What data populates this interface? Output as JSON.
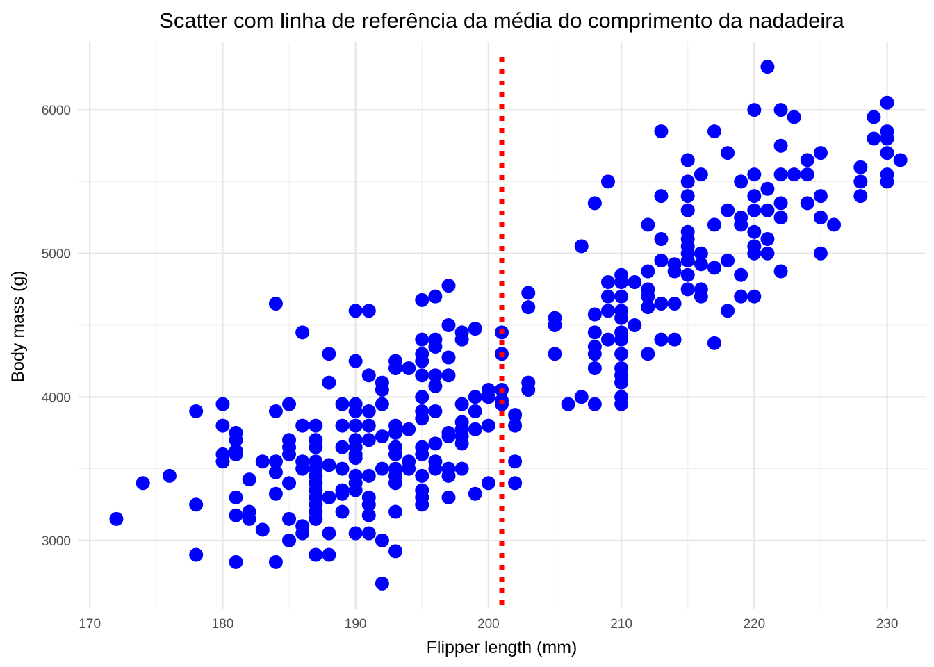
{
  "chart_data": {
    "type": "scatter",
    "title": "Scatter com linha de referência da média do comprimento da nadadeira",
    "xlabel": "Flipper length (mm)",
    "ylabel": "Body mass (g)",
    "xlim": [
      169.1,
      232.9
    ],
    "ylim": [
      2525,
      6475
    ],
    "x_ticks": [
      170,
      180,
      190,
      200,
      210,
      220,
      230
    ],
    "y_ticks": [
      3000,
      4000,
      5000,
      6000
    ],
    "grid": true,
    "legend": "none",
    "point_color": "#0000ff",
    "reference_line": {
      "orientation": "vertical",
      "x": 201,
      "style": "dotted",
      "color": "#ff0000"
    },
    "points": [
      [
        172,
        3150
      ],
      [
        174,
        3400
      ],
      [
        176,
        3450
      ],
      [
        178,
        3900
      ],
      [
        178,
        3250
      ],
      [
        178,
        2900
      ],
      [
        180,
        3950
      ],
      [
        180,
        3800
      ],
      [
        180,
        3600
      ],
      [
        180,
        3550
      ],
      [
        181,
        3750
      ],
      [
        181,
        3700
      ],
      [
        181,
        3625
      ],
      [
        181,
        3600
      ],
      [
        181,
        3300
      ],
      [
        181,
        3175
      ],
      [
        181,
        2850
      ],
      [
        182,
        3425
      ],
      [
        182,
        3200
      ],
      [
        182,
        3150
      ],
      [
        183,
        3550
      ],
      [
        183,
        3075
      ],
      [
        184,
        4650
      ],
      [
        184,
        3900
      ],
      [
        184,
        3550
      ],
      [
        184,
        3475
      ],
      [
        184,
        3325
      ],
      [
        184,
        2850
      ],
      [
        185,
        3950
      ],
      [
        185,
        3700
      ],
      [
        185,
        3650
      ],
      [
        185,
        3600
      ],
      [
        185,
        3400
      ],
      [
        185,
        3150
      ],
      [
        185,
        3000
      ],
      [
        186,
        4450
      ],
      [
        186,
        3800
      ],
      [
        186,
        3550
      ],
      [
        186,
        3500
      ],
      [
        186,
        3100
      ],
      [
        186,
        3050
      ],
      [
        187,
        3800
      ],
      [
        187,
        3700
      ],
      [
        187,
        3650
      ],
      [
        187,
        3550
      ],
      [
        187,
        3500
      ],
      [
        187,
        3450
      ],
      [
        187,
        3400
      ],
      [
        187,
        3350
      ],
      [
        187,
        3300
      ],
      [
        187,
        3250
      ],
      [
        187,
        3200
      ],
      [
        187,
        3150
      ],
      [
        187,
        2900
      ],
      [
        188,
        4300
      ],
      [
        188,
        4100
      ],
      [
        188,
        3525
      ],
      [
        188,
        3300
      ],
      [
        188,
        3050
      ],
      [
        188,
        2900
      ],
      [
        189,
        3950
      ],
      [
        189,
        3800
      ],
      [
        189,
        3650
      ],
      [
        189,
        3500
      ],
      [
        189,
        3350
      ],
      [
        189,
        3325
      ],
      [
        189,
        3200
      ],
      [
        190,
        4600
      ],
      [
        190,
        4250
      ],
      [
        190,
        3950
      ],
      [
        190,
        3900
      ],
      [
        190,
        3800
      ],
      [
        190,
        3700
      ],
      [
        190,
        3650
      ],
      [
        190,
        3600
      ],
      [
        190,
        3575
      ],
      [
        190,
        3450
      ],
      [
        190,
        3400
      ],
      [
        190,
        3350
      ],
      [
        190,
        3050
      ],
      [
        191,
        4600
      ],
      [
        191,
        4150
      ],
      [
        191,
        3900
      ],
      [
        191,
        3800
      ],
      [
        191,
        3700
      ],
      [
        191,
        3450
      ],
      [
        191,
        3300
      ],
      [
        191,
        3250
      ],
      [
        191,
        3175
      ],
      [
        191,
        3050
      ],
      [
        192,
        4100
      ],
      [
        192,
        4050
      ],
      [
        192,
        3950
      ],
      [
        192,
        3725
      ],
      [
        192,
        3500
      ],
      [
        192,
        3000
      ],
      [
        192,
        2700
      ],
      [
        193,
        4250
      ],
      [
        193,
        4200
      ],
      [
        193,
        3800
      ],
      [
        193,
        3750
      ],
      [
        193,
        3650
      ],
      [
        193,
        3600
      ],
      [
        193,
        3500
      ],
      [
        193,
        3450
      ],
      [
        193,
        3400
      ],
      [
        193,
        3200
      ],
      [
        193,
        2925
      ],
      [
        194,
        4200
      ],
      [
        194,
        3775
      ],
      [
        194,
        3550
      ],
      [
        194,
        3500
      ],
      [
        195,
        4675
      ],
      [
        195,
        4400
      ],
      [
        195,
        4300
      ],
      [
        195,
        4250
      ],
      [
        195,
        4150
      ],
      [
        195,
        4000
      ],
      [
        195,
        3900
      ],
      [
        195,
        3850
      ],
      [
        195,
        3650
      ],
      [
        195,
        3600
      ],
      [
        195,
        3450
      ],
      [
        195,
        3350
      ],
      [
        195,
        3300
      ],
      [
        195,
        3250
      ],
      [
        196,
        4700
      ],
      [
        196,
        4400
      ],
      [
        196,
        4350
      ],
      [
        196,
        4150
      ],
      [
        196,
        4075
      ],
      [
        196,
        3900
      ],
      [
        196,
        3675
      ],
      [
        196,
        3550
      ],
      [
        196,
        3500
      ],
      [
        197,
        4775
      ],
      [
        197,
        4500
      ],
      [
        197,
        4275
      ],
      [
        197,
        4150
      ],
      [
        197,
        3750
      ],
      [
        197,
        3725
      ],
      [
        197,
        3500
      ],
      [
        197,
        3450
      ],
      [
        197,
        3300
      ],
      [
        198,
        4450
      ],
      [
        198,
        4400
      ],
      [
        198,
        3950
      ],
      [
        198,
        3825
      ],
      [
        198,
        3775
      ],
      [
        198,
        3725
      ],
      [
        198,
        3675
      ],
      [
        198,
        3500
      ],
      [
        199,
        4475
      ],
      [
        199,
        4000
      ],
      [
        199,
        3900
      ],
      [
        199,
        3775
      ],
      [
        199,
        3325
      ],
      [
        200,
        4050
      ],
      [
        200,
        4000
      ],
      [
        200,
        3800
      ],
      [
        200,
        3400
      ],
      [
        201,
        4450
      ],
      [
        201,
        4300
      ],
      [
        201,
        4050
      ],
      [
        201,
        3975
      ],
      [
        201,
        3950
      ],
      [
        202,
        3875
      ],
      [
        202,
        3800
      ],
      [
        202,
        3550
      ],
      [
        202,
        3400
      ],
      [
        203,
        4725
      ],
      [
        203,
        4625
      ],
      [
        203,
        4100
      ],
      [
        203,
        4050
      ],
      [
        205,
        4550
      ],
      [
        205,
        4500
      ],
      [
        205,
        4300
      ],
      [
        206,
        3950
      ],
      [
        207,
        5050
      ],
      [
        207,
        4000
      ],
      [
        208,
        5350
      ],
      [
        208,
        4575
      ],
      [
        208,
        4450
      ],
      [
        208,
        4350
      ],
      [
        208,
        4300
      ],
      [
        208,
        4200
      ],
      [
        208,
        3950
      ],
      [
        209,
        5500
      ],
      [
        209,
        4800
      ],
      [
        209,
        4700
      ],
      [
        209,
        4600
      ],
      [
        209,
        4400
      ],
      [
        210,
        4850
      ],
      [
        210,
        4800
      ],
      [
        210,
        4700
      ],
      [
        210,
        4600
      ],
      [
        210,
        4550
      ],
      [
        210,
        4450
      ],
      [
        210,
        4400
      ],
      [
        210,
        4300
      ],
      [
        210,
        4200
      ],
      [
        210,
        4150
      ],
      [
        210,
        4100
      ],
      [
        210,
        4000
      ],
      [
        210,
        3950
      ],
      [
        211,
        4800
      ],
      [
        211,
        4500
      ],
      [
        212,
        5200
      ],
      [
        212,
        4875
      ],
      [
        212,
        4750
      ],
      [
        212,
        4700
      ],
      [
        212,
        4625
      ],
      [
        212,
        4300
      ],
      [
        213,
        5850
      ],
      [
        213,
        5400
      ],
      [
        213,
        5100
      ],
      [
        213,
        4950
      ],
      [
        213,
        4650
      ],
      [
        213,
        4400
      ],
      [
        214,
        4925
      ],
      [
        214,
        4875
      ],
      [
        214,
        4650
      ],
      [
        214,
        4400
      ],
      [
        215,
        5650
      ],
      [
        215,
        5500
      ],
      [
        215,
        5400
      ],
      [
        215,
        5300
      ],
      [
        215,
        5150
      ],
      [
        215,
        5100
      ],
      [
        215,
        5050
      ],
      [
        215,
        5000
      ],
      [
        215,
        4950
      ],
      [
        215,
        4850
      ],
      [
        215,
        4750
      ],
      [
        216,
        5550
      ],
      [
        216,
        5000
      ],
      [
        216,
        4925
      ],
      [
        216,
        4750
      ],
      [
        216,
        4700
      ],
      [
        217,
        5850
      ],
      [
        217,
        5200
      ],
      [
        217,
        4900
      ],
      [
        217,
        4375
      ],
      [
        218,
        5700
      ],
      [
        218,
        5300
      ],
      [
        218,
        4950
      ],
      [
        218,
        4600
      ],
      [
        219,
        5500
      ],
      [
        219,
        5250
      ],
      [
        219,
        5200
      ],
      [
        219,
        4850
      ],
      [
        219,
        4700
      ],
      [
        220,
        6000
      ],
      [
        220,
        5550
      ],
      [
        220,
        5400
      ],
      [
        220,
        5300
      ],
      [
        220,
        5150
      ],
      [
        220,
        5050
      ],
      [
        220,
        5000
      ],
      [
        220,
        4700
      ],
      [
        221,
        6300
      ],
      [
        221,
        5450
      ],
      [
        221,
        5300
      ],
      [
        221,
        5100
      ],
      [
        221,
        5000
      ],
      [
        222,
        6000
      ],
      [
        222,
        5750
      ],
      [
        222,
        5550
      ],
      [
        222,
        5350
      ],
      [
        222,
        5250
      ],
      [
        222,
        4875
      ],
      [
        223,
        5950
      ],
      [
        223,
        5550
      ],
      [
        224,
        5650
      ],
      [
        224,
        5550
      ],
      [
        224,
        5350
      ],
      [
        225,
        5700
      ],
      [
        225,
        5400
      ],
      [
        225,
        5250
      ],
      [
        225,
        5000
      ],
      [
        226,
        5200
      ],
      [
        228,
        5600
      ],
      [
        228,
        5500
      ],
      [
        228,
        5400
      ],
      [
        229,
        5950
      ],
      [
        229,
        5800
      ],
      [
        230,
        6050
      ],
      [
        230,
        5850
      ],
      [
        230,
        5800
      ],
      [
        230,
        5700
      ],
      [
        230,
        5550
      ],
      [
        230,
        5500
      ],
      [
        231,
        5650
      ]
    ]
  }
}
